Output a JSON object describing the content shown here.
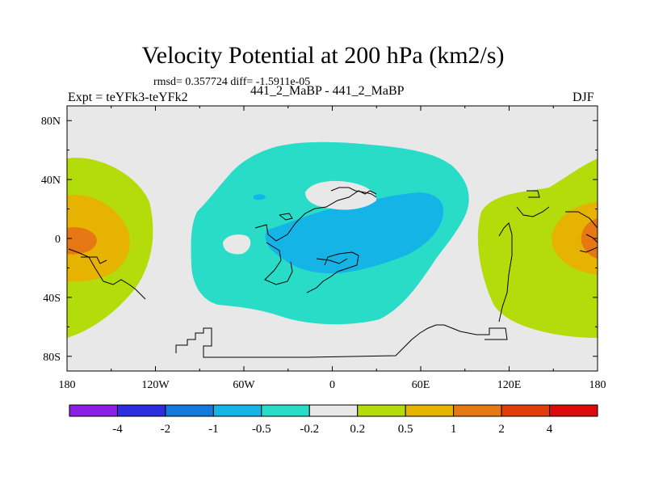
{
  "title": "Velocity Potential at 200 hPa (km2/s)",
  "stats": "rmsd= 0.357724  diff= -1.5911e-05",
  "left_label": "Expt = teYFk3-teYFk2",
  "center_label": "441_2_MaBP - 441_2_MaBP",
  "right_label": "DJF",
  "chart_data": {
    "type": "heatmap",
    "title": "Velocity Potential at 200 hPa (km2/s)",
    "x_ticks": [
      "180",
      "120W",
      "60W",
      "0",
      "60E",
      "120E",
      "180"
    ],
    "x_values": [
      -180,
      -120,
      -60,
      0,
      60,
      120,
      180
    ],
    "y_ticks": [
      "80N",
      "40N",
      "0",
      "40S",
      "80S"
    ],
    "y_values": [
      80,
      40,
      0,
      -40,
      -80
    ],
    "xlim": [
      -180,
      180
    ],
    "ylim": [
      -90,
      90
    ],
    "colorbar": {
      "labels": [
        "-4",
        "-2",
        "-1",
        "-0.5",
        "-0.2",
        "0.2",
        "0.5",
        "1",
        "2",
        "4"
      ],
      "colors": [
        "#8c1ee6",
        "#2d2de0",
        "#1478dc",
        "#14b4e6",
        "#28dcc8",
        "#e8e8e8",
        "#b4dc0a",
        "#e6b400",
        "#e67814",
        "#e13c0a",
        "#dc0a0a"
      ]
    },
    "regions": [
      {
        "name": "western-pacific-positive",
        "level": "0.2 to 0.5",
        "color": "#b4dc0a",
        "center_lon": 150,
        "center_lat": 0
      },
      {
        "name": "central-pacific-positive",
        "level": "0.2 to 0.5",
        "color": "#b4dc0a",
        "center_lon": -165,
        "center_lat": -5
      },
      {
        "name": "atlantic-negative",
        "level": "-0.5 to -0.2",
        "color": "#28dcc8",
        "center_lon": -10,
        "center_lat": 5
      },
      {
        "name": "atlantic-negative-core",
        "level": "-1 to -0.5",
        "color": "#14b4e6",
        "center_lon": 5,
        "center_lat": 5
      },
      {
        "name": "dateline-max",
        "level": "1 to 2",
        "color": "#e67814",
        "center_lon": 178,
        "center_lat": -2
      }
    ]
  }
}
